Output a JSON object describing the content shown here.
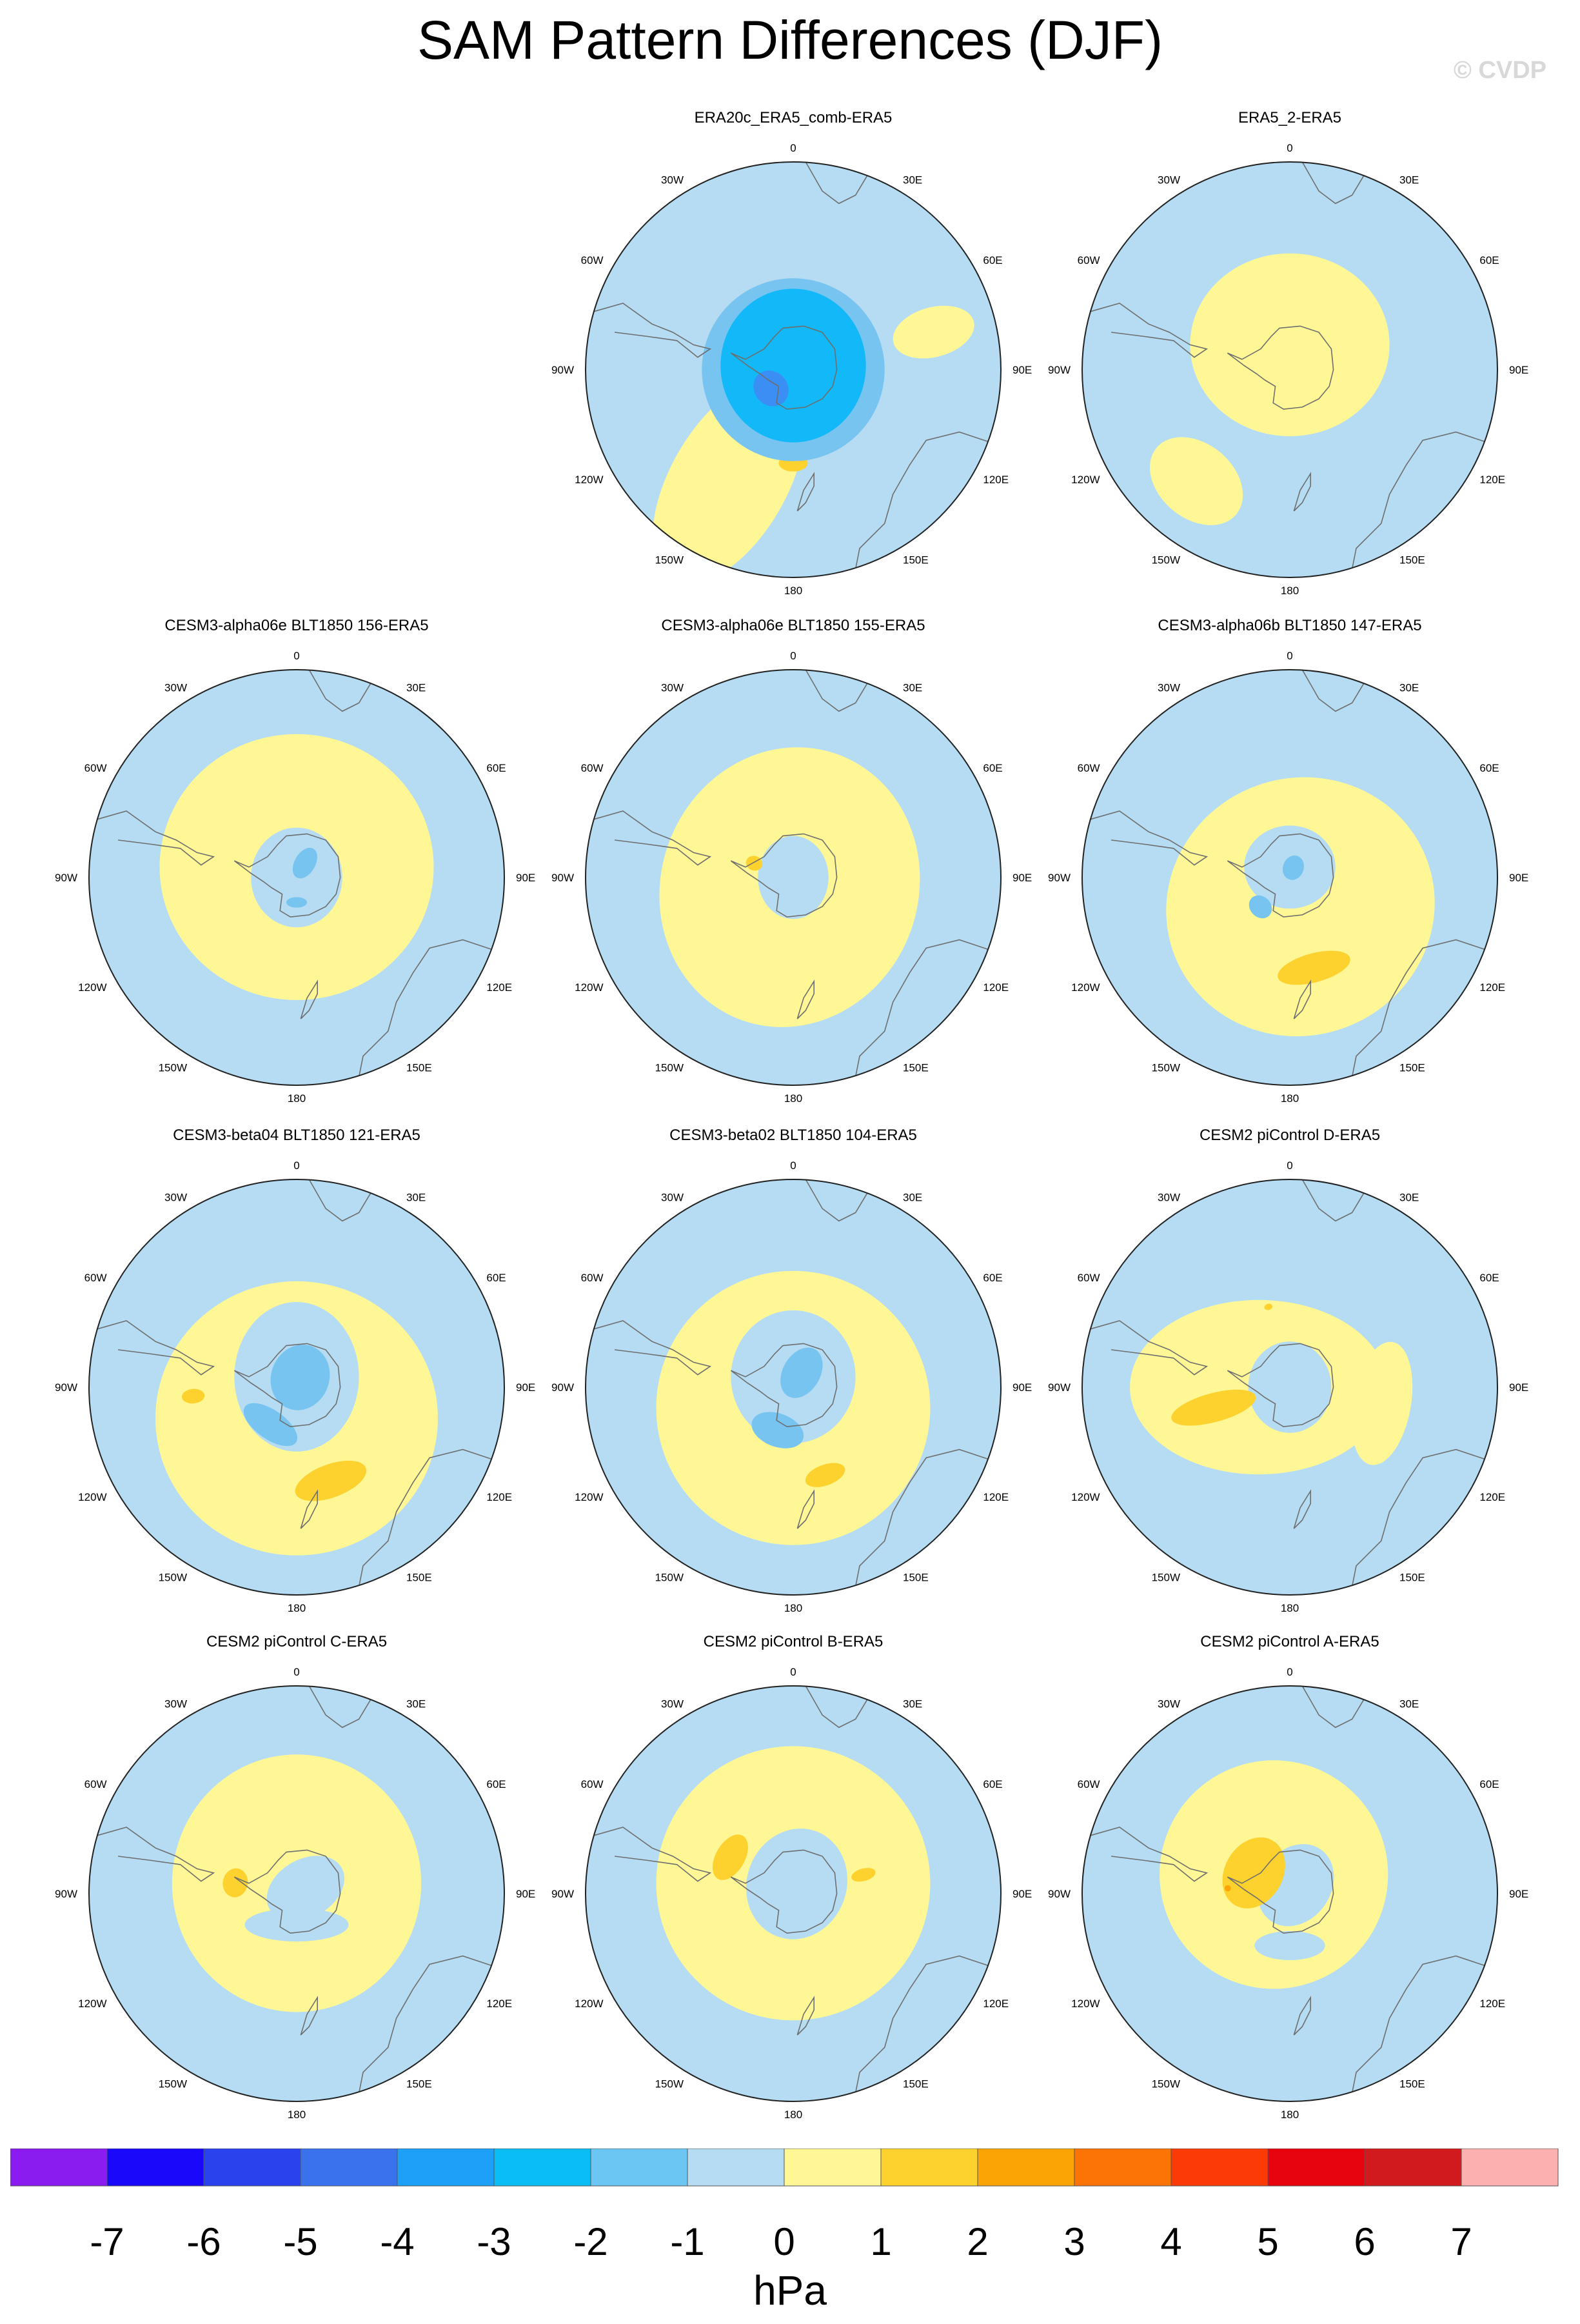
{
  "title": "SAM Pattern Differences (DJF)",
  "watermark": "© CVDP",
  "colors": {
    "ocean_neg1": "#b5dcf2",
    "pos1": "#fff796",
    "pos2": "#fdd22e",
    "pos3": "#fba406",
    "neg2": "#78c4f0",
    "neg3": "#12b8f7",
    "neg4": "#3a8ef4",
    "coast": "#6e6e6e",
    "rim": "#222222"
  },
  "map_labels": {
    "top": "0",
    "bottom": "180",
    "right": [
      "30E",
      "60E",
      "90E",
      "120E",
      "150E"
    ],
    "left": [
      "30W",
      "60W",
      "90W",
      "120W",
      "150W"
    ]
  },
  "panels": [
    {
      "title": "ERA20c_ERA5_comb-ERA5",
      "fields": [
        {
          "lon": 210,
          "r": 0.62,
          "rx": 0.28,
          "ry": 0.55,
          "level": 1
        },
        {
          "lon": 75,
          "r": 0.7,
          "rx": 0.12,
          "ry": 0.2,
          "level": 1
        },
        {
          "lon": 180,
          "r": 0.45,
          "rx": 0.07,
          "ry": 0.04,
          "level": 2
        },
        {
          "lon": 0,
          "r": 0.0,
          "rx": 0.44,
          "ry": 0.44,
          "level": -2
        },
        {
          "lon": 0,
          "r": 0.02,
          "rx": 0.35,
          "ry": 0.37,
          "level": -3
        },
        {
          "lon": 230,
          "r": 0.14,
          "rx": 0.09,
          "ry": 0.08,
          "level": -4
        }
      ]
    },
    {
      "title": "ERA5_2-ERA5",
      "fields": [
        {
          "lon": 0,
          "r": 0.12,
          "rx": 0.48,
          "ry": 0.44,
          "level": 1
        },
        {
          "lon": 220,
          "r": 0.7,
          "rx": 0.25,
          "ry": 0.18,
          "level": 1
        }
      ]
    },
    {
      "title": "CESM3-alpha06e BLT1850 156-ERA5",
      "fields": [
        {
          "lon": 0,
          "r": 0.05,
          "rx": 0.66,
          "ry": 0.64,
          "level": 1
        },
        {
          "lon": 0,
          "r": 0.0,
          "rx": 0.22,
          "ry": 0.24,
          "level": -1
        },
        {
          "lon": 30,
          "r": 0.08,
          "rx": 0.05,
          "ry": 0.08,
          "level": -2
        },
        {
          "lon": 180,
          "r": 0.12,
          "rx": 0.05,
          "ry": 0.025,
          "level": -2
        }
      ]
    },
    {
      "title": "CESM3-alpha06e BLT1850 155-ERA5",
      "fields": [
        {
          "lon": 200,
          "r": 0.05,
          "rx": 0.62,
          "ry": 0.68,
          "level": 1
        },
        {
          "lon": 0,
          "r": 0.0,
          "rx": 0.17,
          "ry": 0.2,
          "level": -1
        },
        {
          "lon": 290,
          "r": 0.2,
          "rx": 0.035,
          "ry": 0.04,
          "level": 2
        }
      ]
    },
    {
      "title": "CESM3-alpha06b BLT1850 147-ERA5",
      "fields": [
        {
          "lon": 160,
          "r": 0.15,
          "rx": 0.65,
          "ry": 0.62,
          "level": 1
        },
        {
          "lon": 0,
          "r": 0.05,
          "rx": 0.22,
          "ry": 0.2,
          "level": -1
        },
        {
          "lon": 225,
          "r": 0.2,
          "rx": 0.06,
          "ry": 0.05,
          "level": -2
        },
        {
          "lon": 20,
          "r": 0.05,
          "rx": 0.05,
          "ry": 0.06,
          "level": -2
        },
        {
          "lon": 165,
          "r": 0.45,
          "rx": 0.18,
          "ry": 0.07,
          "level": 2
        }
      ]
    },
    {
      "title": "CESM3-beta04 BLT1850 121-ERA5",
      "fields": [
        {
          "lon": 180,
          "r": 0.15,
          "rx": 0.68,
          "ry": 0.66,
          "level": 1
        },
        {
          "lon": 0,
          "r": 0.05,
          "rx": 0.3,
          "ry": 0.36,
          "level": -1
        },
        {
          "lon": 20,
          "r": 0.05,
          "rx": 0.14,
          "ry": 0.16,
          "level": -2
        },
        {
          "lon": 215,
          "r": 0.22,
          "rx": 0.15,
          "ry": 0.07,
          "level": -2
        },
        {
          "lon": 160,
          "r": 0.48,
          "rx": 0.18,
          "ry": 0.08,
          "level": 2
        },
        {
          "lon": 265,
          "r": 0.5,
          "rx": 0.035,
          "ry": 0.055,
          "level": 2
        }
      ]
    },
    {
      "title": "CESM3-beta02 BLT1850 104-ERA5",
      "fields": [
        {
          "lon": 180,
          "r": 0.1,
          "rx": 0.66,
          "ry": 0.66,
          "level": 1
        },
        {
          "lon": 0,
          "r": 0.05,
          "rx": 0.3,
          "ry": 0.32,
          "level": -1
        },
        {
          "lon": 30,
          "r": 0.08,
          "rx": 0.09,
          "ry": 0.13,
          "level": -2
        },
        {
          "lon": 200,
          "r": 0.22,
          "rx": 0.13,
          "ry": 0.08,
          "level": -2
        },
        {
          "lon": 160,
          "r": 0.45,
          "rx": 0.1,
          "ry": 0.05,
          "level": 2
        }
      ]
    },
    {
      "title": "CESM2 piControl D-ERA5",
      "fields": [
        {
          "lon": 270,
          "r": 0.15,
          "rx": 0.42,
          "ry": 0.62,
          "level": 1
        },
        {
          "lon": 100,
          "r": 0.45,
          "rx": 0.3,
          "ry": 0.14,
          "level": 1
        },
        {
          "lon": 0,
          "r": 0.0,
          "rx": 0.2,
          "ry": 0.22,
          "level": -1
        },
        {
          "lon": 255,
          "r": 0.38,
          "rx": 0.07,
          "ry": 0.21,
          "level": 2
        },
        {
          "lon": 345,
          "r": 0.4,
          "rx": 0.02,
          "ry": 0.015,
          "level": 2
        }
      ]
    },
    {
      "title": "CESM2 piControl C-ERA5",
      "fields": [
        {
          "lon": 0,
          "r": 0.05,
          "rx": 0.6,
          "ry": 0.62,
          "level": 1
        },
        {
          "lon": 60,
          "r": 0.05,
          "rx": 0.14,
          "ry": 0.2,
          "level": -1
        },
        {
          "lon": 180,
          "r": 0.15,
          "rx": 0.25,
          "ry": 0.08,
          "level": -1
        },
        {
          "lon": 280,
          "r": 0.3,
          "rx": 0.07,
          "ry": 0.06,
          "level": 2
        }
      ]
    },
    {
      "title": "CESM2 piControl B-ERA5",
      "fields": [
        {
          "lon": 0,
          "r": 0.05,
          "rx": 0.66,
          "ry": 0.66,
          "level": 1
        },
        {
          "lon": 20,
          "r": 0.05,
          "rx": 0.24,
          "ry": 0.27,
          "level": -1
        },
        {
          "lon": 300,
          "r": 0.35,
          "rx": 0.12,
          "ry": 0.07,
          "level": 2
        },
        {
          "lon": 75,
          "r": 0.35,
          "rx": 0.03,
          "ry": 0.06,
          "level": 2
        }
      ]
    },
    {
      "title": "CESM2 piControl A-ERA5",
      "fields": [
        {
          "lon": 320,
          "r": 0.12,
          "rx": 0.55,
          "ry": 0.55,
          "level": 1
        },
        {
          "lon": 35,
          "r": 0.05,
          "rx": 0.17,
          "ry": 0.21,
          "level": -1
        },
        {
          "lon": 180,
          "r": 0.25,
          "rx": 0.17,
          "ry": 0.07,
          "level": -1
        },
        {
          "lon": 300,
          "r": 0.2,
          "rx": 0.18,
          "ry": 0.14,
          "level": 2
        },
        {
          "lon": 275,
          "r": 0.3,
          "rx": 0.015,
          "ry": 0.015,
          "level": 3
        }
      ]
    }
  ],
  "colorbar": {
    "colors": [
      "#8b1cf0",
      "#1a08fb",
      "#2a42ee",
      "#3a72ee",
      "#1ea0f8",
      "#0bbdf5",
      "#6cc6f3",
      "#b5dcf2",
      "#fff796",
      "#fdd22e",
      "#fba406",
      "#fc7406",
      "#fc3a05",
      "#e8040e",
      "#d01a1e",
      "#fdb0b0"
    ],
    "ticks": [
      "-7",
      "-6",
      "-5",
      "-4",
      "-3",
      "-2",
      "-1",
      "0",
      "1",
      "2",
      "3",
      "4",
      "5",
      "6",
      "7"
    ],
    "units": "hPa"
  }
}
